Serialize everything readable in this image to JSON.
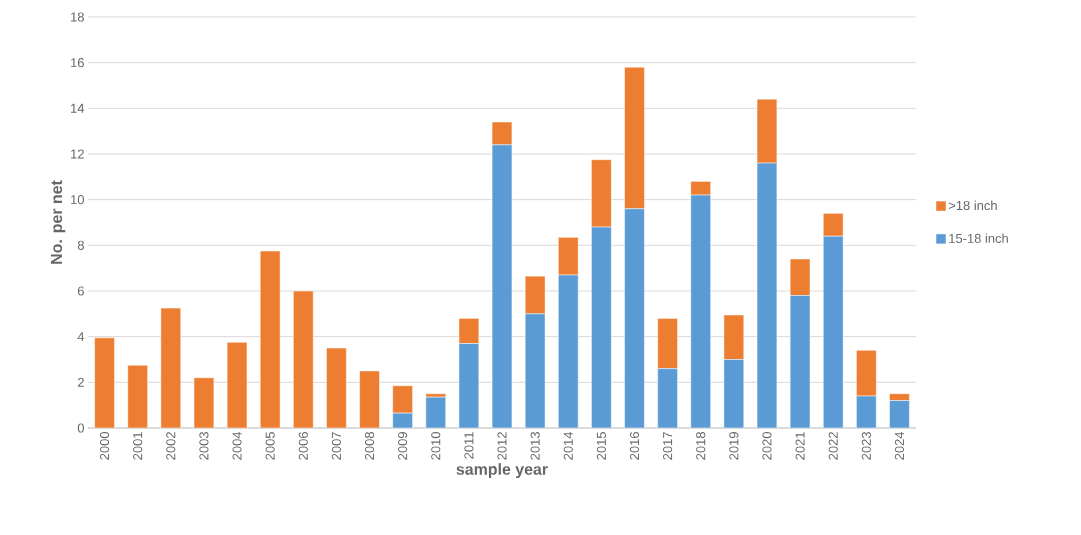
{
  "chart_data": {
    "type": "bar",
    "stacked": true,
    "xlabel": "sample year",
    "ylabel": "No.  per net",
    "categories": [
      "2000",
      "2001",
      "2002",
      "2003",
      "2004",
      "2005",
      "2006",
      "2007",
      "2008",
      "2009",
      "2010",
      "2011",
      "2012",
      "2013",
      "2014",
      "2015",
      "2016",
      "2017",
      "2018",
      "2019",
      "2020",
      "2021",
      "2022",
      "2023",
      "2024"
    ],
    "series": [
      {
        "name": "15-18 inch",
        "color": "#5b9bd5",
        "values": [
          0,
          0,
          0,
          0,
          0,
          0,
          0,
          0,
          0,
          0.65,
          1.35,
          3.7,
          12.4,
          5.0,
          6.7,
          8.8,
          9.6,
          2.6,
          10.2,
          3.0,
          11.6,
          5.8,
          8.4,
          1.4,
          1.2
        ]
      },
      {
        "name": ">18 inch",
        "color": "#ed7d31",
        "values": [
          3.95,
          2.75,
          5.25,
          2.2,
          3.75,
          7.75,
          6.0,
          3.5,
          2.5,
          1.2,
          0.15,
          1.1,
          1.0,
          1.65,
          1.65,
          2.95,
          6.2,
          2.2,
          0.6,
          1.95,
          2.8,
          1.6,
          1.0,
          2.0,
          0.3
        ]
      }
    ],
    "ylim": [
      0,
      18
    ],
    "yticks": [
      0,
      2,
      4,
      6,
      8,
      10,
      12,
      14,
      16,
      18
    ],
    "grid": "y",
    "legend": "right"
  }
}
